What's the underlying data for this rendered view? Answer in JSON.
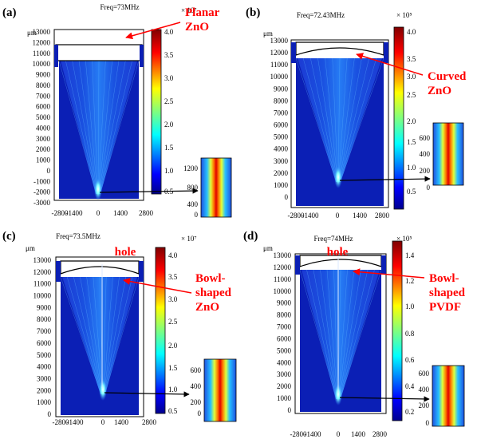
{
  "figure": {
    "panels": [
      {
        "id": "a",
        "letter": "(a)",
        "freq": "Freq=73MHz",
        "unit": "μm",
        "scale_label": "× 10⁷",
        "annotation_lines": [
          "Planar",
          "ZnO"
        ],
        "hole_label": "",
        "y_ticks": [
          "13000",
          "12000",
          "11000",
          "10000",
          "9000",
          "8000",
          "7000",
          "6000",
          "5000",
          "4000",
          "3000",
          "2000",
          "1000",
          "0",
          "-1000",
          "-2000",
          "-3000"
        ],
        "x_ticks": [
          "-2800",
          "-1400",
          "0",
          "1400",
          "2800"
        ],
        "colorbar_ticks": [
          "4.0",
          "3.5",
          "3.0",
          "2.5",
          "2.0",
          "1.5",
          "1.0",
          "0.5"
        ],
        "inset_ticks": [
          "1200",
          "800",
          "400",
          "0"
        ],
        "colors": {
          "annotation": "#ff0000"
        }
      },
      {
        "id": "b",
        "letter": "(b)",
        "freq": "Freq=72.43MHz",
        "unit": "μm",
        "scale_label": "× 10⁵",
        "annotation_lines": [
          "Curved",
          "ZnO"
        ],
        "hole_label": "",
        "y_ticks": [
          "13000",
          "12000",
          "11000",
          "10000",
          "9000",
          "8000",
          "7000",
          "6000",
          "5000",
          "4000",
          "3000",
          "2000",
          "1000",
          "0"
        ],
        "x_ticks": [
          "-2800",
          "-1400",
          "0",
          "1400",
          "2800"
        ],
        "colorbar_ticks": [
          "4.0",
          "3.5",
          "3.0",
          "2.5",
          "2.0",
          "1.5",
          "1.0",
          "0.5"
        ],
        "inset_ticks": [
          "600",
          "400",
          "200",
          "0"
        ],
        "colors": {
          "annotation": "#ff0000"
        }
      },
      {
        "id": "c",
        "letter": "(c)",
        "freq": "Freq=73.5MHz",
        "unit": "μm",
        "scale_label": "× 10⁷",
        "annotation_lines": [
          "Bowl-",
          "shaped",
          "ZnO"
        ],
        "hole_label": "hole",
        "y_ticks": [
          "13000",
          "12000",
          "11000",
          "10000",
          "9000",
          "8000",
          "7000",
          "6000",
          "5000",
          "4000",
          "3000",
          "2000",
          "1000",
          "0"
        ],
        "x_ticks": [
          "-2800",
          "-1400",
          "0",
          "1400",
          "2800"
        ],
        "colorbar_ticks": [
          "4.0",
          "3.5",
          "3.0",
          "2.5",
          "2.0",
          "1.5",
          "1.0",
          "0.5"
        ],
        "inset_ticks": [
          "600",
          "400",
          "200",
          "0"
        ],
        "colors": {
          "annotation": "#ff0000"
        }
      },
      {
        "id": "d",
        "letter": "(d)",
        "freq": "Freq=74MHz",
        "unit": "μm",
        "scale_label": "× 10⁵",
        "annotation_lines": [
          "Bowl-",
          "shaped",
          "PVDF"
        ],
        "hole_label": "hole",
        "y_ticks": [
          "13000",
          "12000",
          "11000",
          "10000",
          "9000",
          "8000",
          "7000",
          "6000",
          "5000",
          "4000",
          "3000",
          "2000",
          "1000",
          "0"
        ],
        "x_ticks": [
          "-2800",
          "-1400",
          "0",
          "1400",
          "2800"
        ],
        "colorbar_ticks": [
          "1.4",
          "1.2",
          "1.0",
          "0.8",
          "0.6",
          "0.4",
          "0.2"
        ],
        "inset_ticks": [
          "600",
          "400",
          "200",
          "0"
        ],
        "colors": {
          "annotation": "#ff0000"
        }
      }
    ]
  }
}
